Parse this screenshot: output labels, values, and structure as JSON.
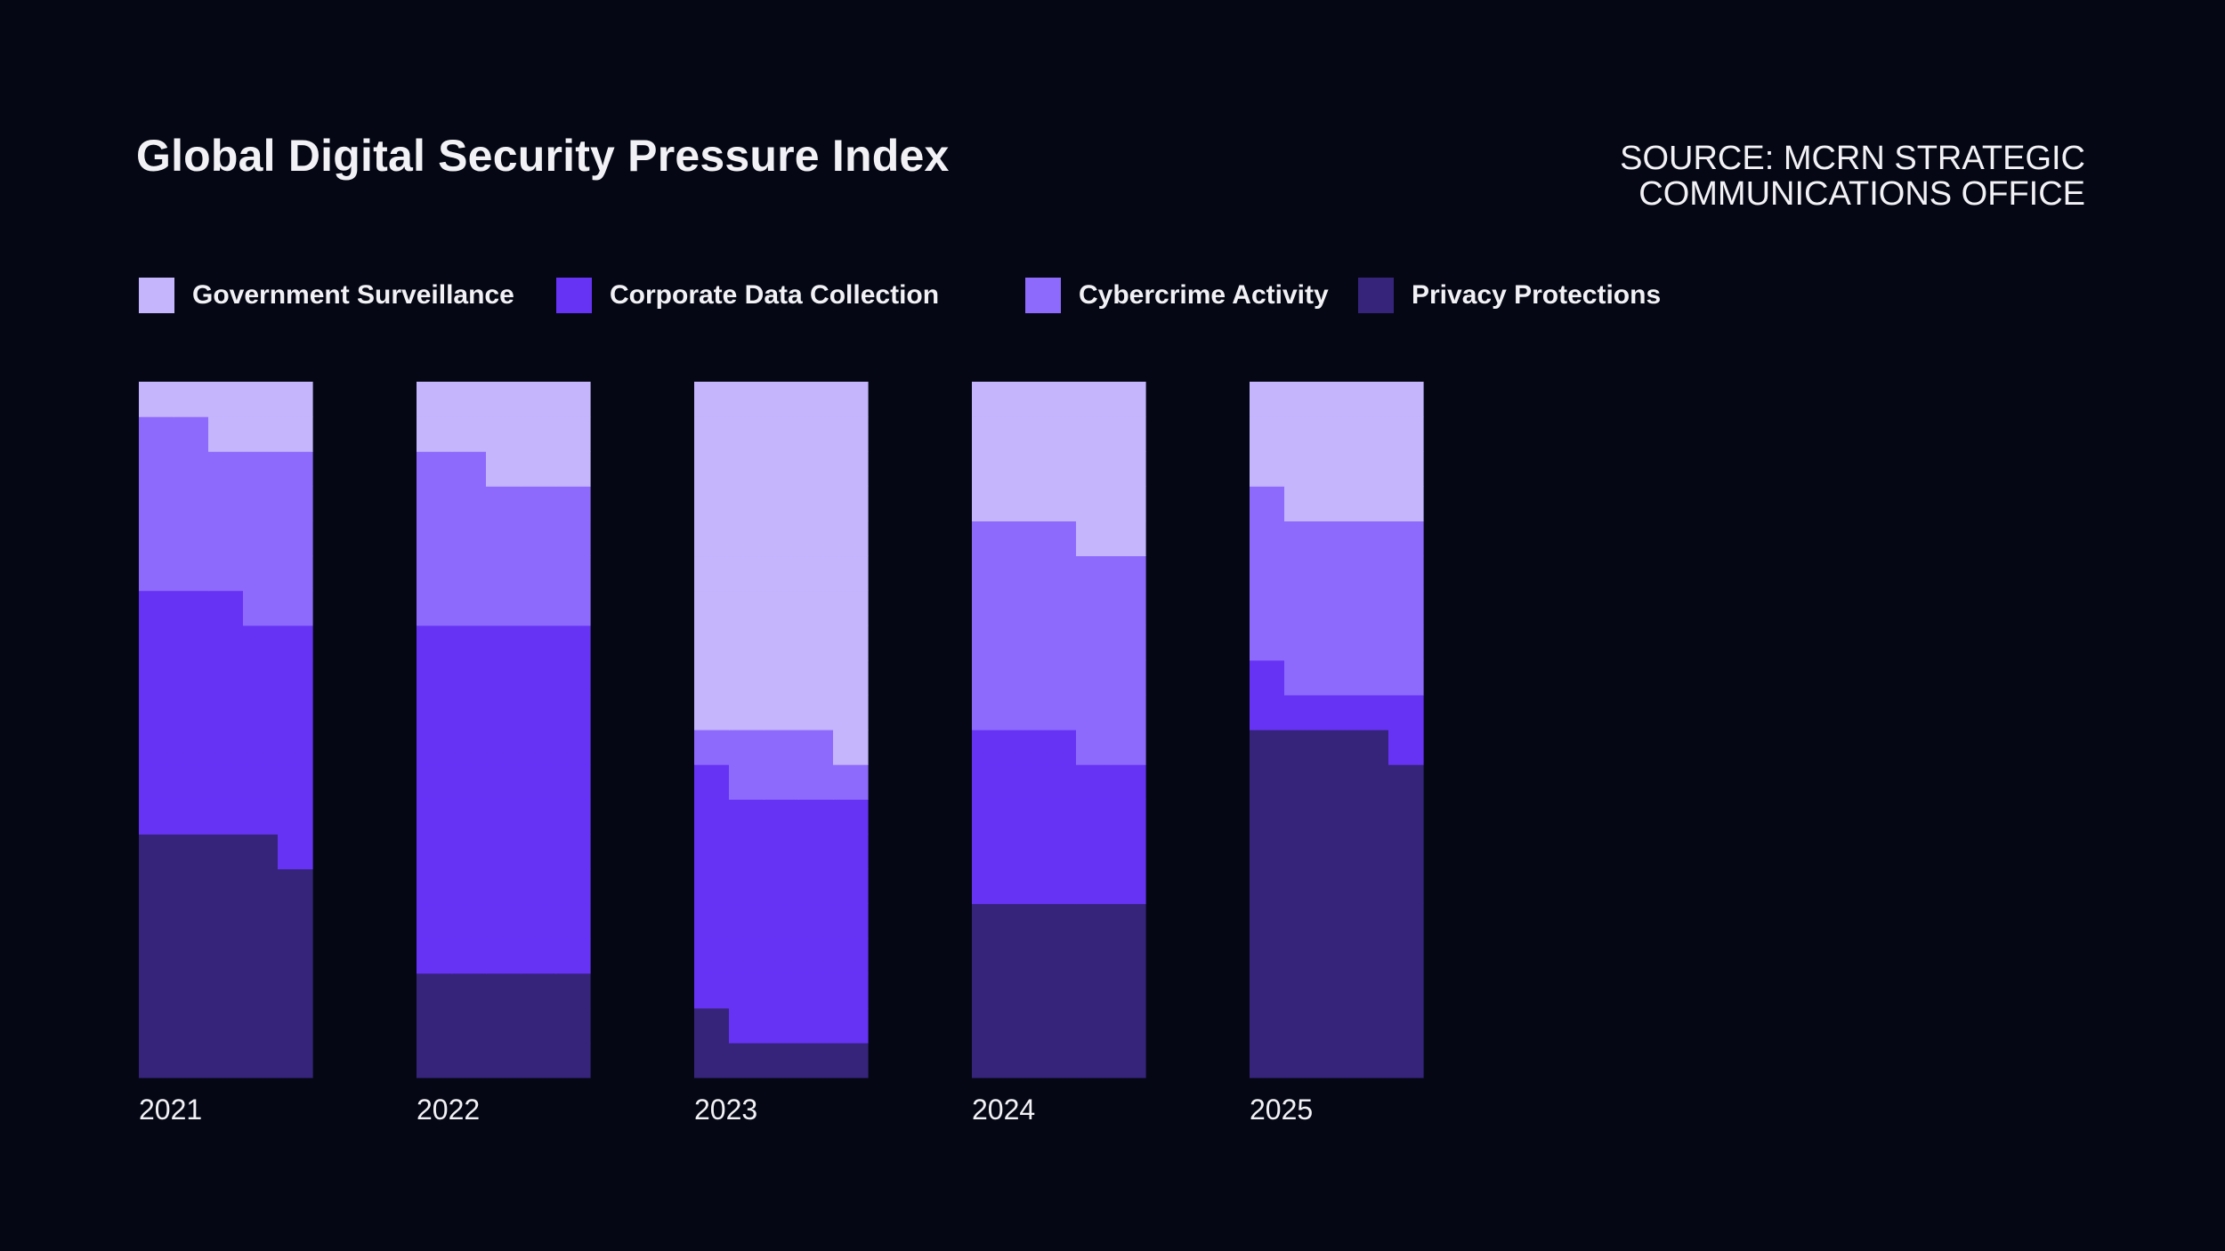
{
  "title": "Global Digital Security Pressure Index",
  "source": {
    "line1": "SOURCE: MCRN STRATEGIC",
    "line2": "COMMUNICATIONS OFFICE"
  },
  "colors": {
    "background": "#050814",
    "Government Surveillance": "#c4b5fd",
    "Corporate Data Collection": "#6633f5",
    "Cybercrime Activity": "#8e6afc",
    "Privacy Protections": "#36247a"
  },
  "chart_data": {
    "type": "bar",
    "subtype": "stacked-waffle-columns",
    "title": "Global Digital Security Pressure Index",
    "unit_note": "each column = 20 rows x 5 cells (100 units), stacked bottom-up in order: Privacy Protections, Corporate Data Collection, Cybercrime Activity, Government Surveillance",
    "categories": [
      "2021",
      "2022",
      "2023",
      "2024",
      "2025"
    ],
    "stack_order": [
      "Privacy Protections",
      "Corporate Data Collection",
      "Cybercrime Activity",
      "Government Surveillance"
    ],
    "series": [
      {
        "name": "Government Surveillance",
        "values": [
          8,
          13,
          51,
          22,
          19
        ]
      },
      {
        "name": "Corporate Data Collection",
        "values": [
          34,
          50,
          35,
          23,
          7
        ]
      },
      {
        "name": "Cybercrime Activity",
        "values": [
          24,
          22,
          8,
          30,
          25
        ]
      },
      {
        "name": "Privacy Protections",
        "values": [
          34,
          15,
          6,
          25,
          49
        ]
      }
    ],
    "legend": [
      "Government Surveillance",
      "Corporate Data Collection",
      "Cybercrime Activity",
      "Privacy Protections"
    ],
    "legend_position": "top-left",
    "grid": false
  }
}
